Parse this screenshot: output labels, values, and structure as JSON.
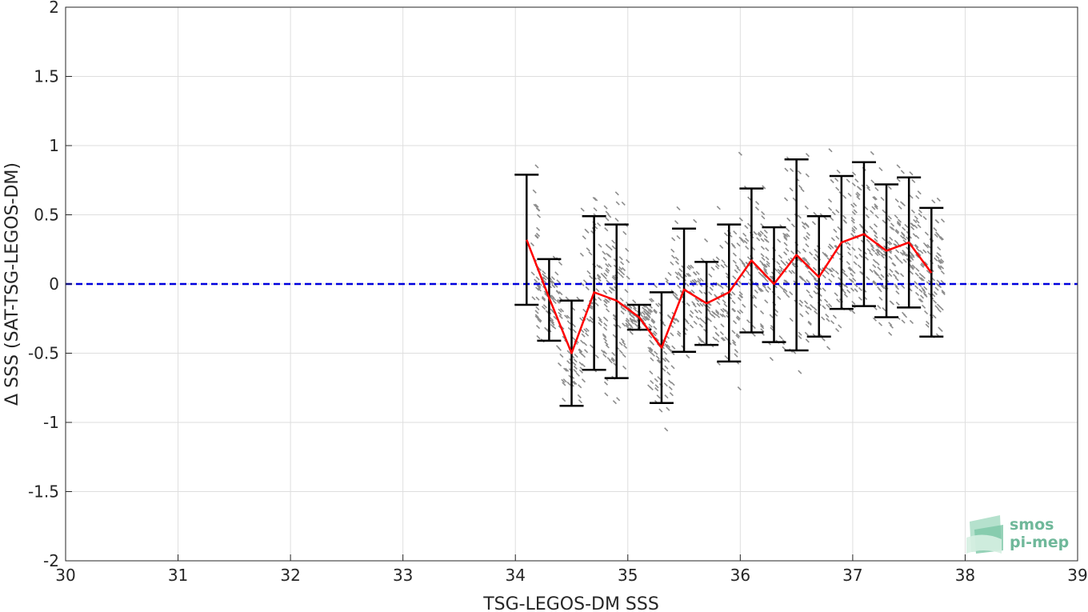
{
  "chart_data": {
    "type": "line",
    "title": "",
    "xlabel": "TSG-LEGOS-DM SSS",
    "ylabel": "Δ SSS (SAT-TSG-LEGOS-DM)",
    "xlim": [
      30,
      39
    ],
    "ylim": [
      -2,
      2
    ],
    "xticks": [
      "30",
      "31",
      "32",
      "33",
      "34",
      "35",
      "36",
      "37",
      "38",
      "39"
    ],
    "yticks": [
      "-2",
      "-1.5",
      "-1",
      "-0.5",
      "0",
      "0.5",
      "1",
      "1.5",
      "2"
    ],
    "grid": true,
    "reference_line": {
      "y": 0,
      "color": "#0000dd",
      "style": "dashed"
    },
    "series": [
      {
        "role": "binned mean with error bars",
        "color": "#ff0000",
        "errorbar_color": "#000000",
        "x": [
          34.1,
          34.3,
          34.5,
          34.7,
          34.9,
          35.1,
          35.3,
          35.5,
          35.7,
          35.9,
          36.1,
          36.3,
          36.5,
          36.7,
          36.9,
          37.1,
          37.3,
          37.5,
          37.7
        ],
        "y": [
          0.32,
          -0.1,
          -0.5,
          -0.06,
          -0.12,
          -0.24,
          -0.46,
          -0.04,
          -0.14,
          -0.06,
          0.17,
          0.0,
          0.21,
          0.05,
          0.3,
          0.36,
          0.24,
          0.3,
          0.08
        ],
        "y_lower": [
          -0.15,
          -0.41,
          -0.88,
          -0.62,
          -0.68,
          -0.33,
          -0.86,
          -0.49,
          -0.44,
          -0.56,
          -0.35,
          -0.42,
          -0.48,
          -0.38,
          -0.18,
          -0.16,
          -0.24,
          -0.17,
          -0.38
        ],
        "y_upper": [
          0.79,
          0.18,
          -0.12,
          0.49,
          0.43,
          -0.15,
          -0.06,
          0.4,
          0.16,
          0.43,
          0.69,
          0.41,
          0.9,
          0.49,
          0.78,
          0.88,
          0.72,
          0.77,
          0.55
        ]
      }
    ],
    "scatter_color": "#8c8c8c"
  },
  "logo": {
    "line1": "smos",
    "line2": "pi-mep"
  }
}
